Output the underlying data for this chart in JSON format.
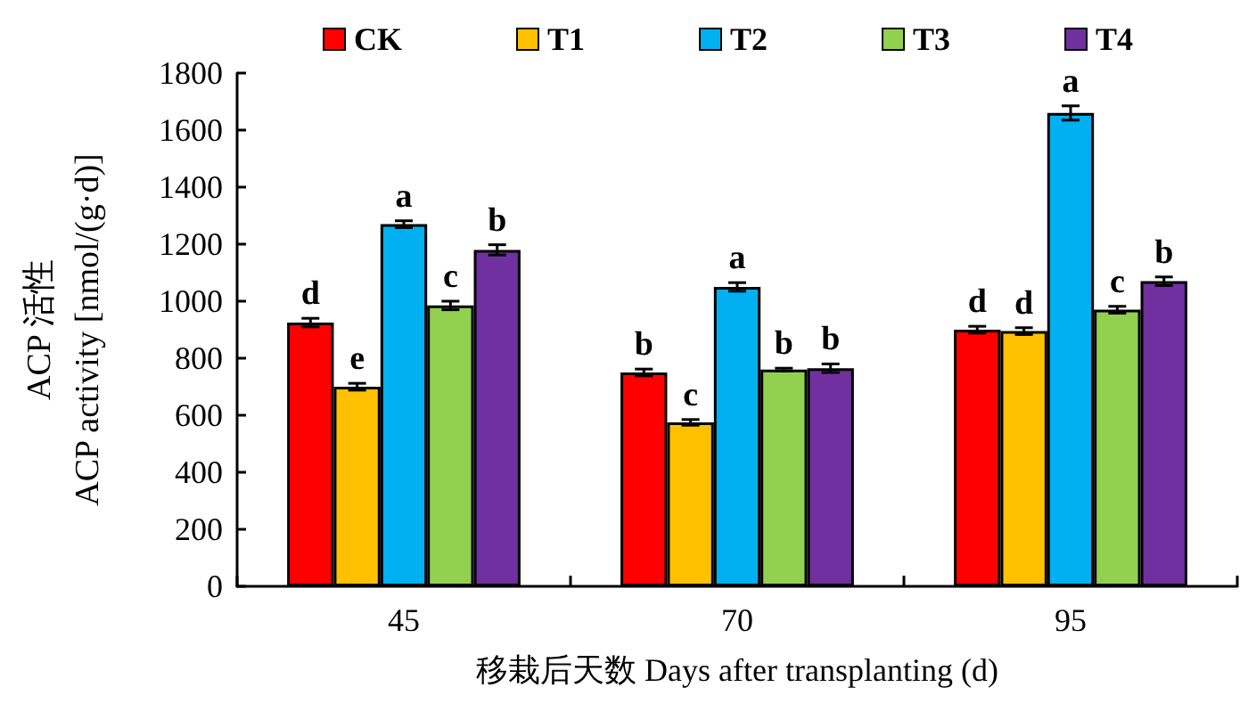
{
  "chart_data": {
    "type": "bar",
    "xlabel": "移栽后天数 Days after transplanting (d)",
    "ylabel": "ACP 活性\nACP activity [nmol/(g·d)]",
    "categories": [
      "45",
      "70",
      "95"
    ],
    "series": [
      {
        "name": "CK",
        "color": "#ff0000",
        "values": [
          925,
          750,
          900
        ],
        "errors": [
          15,
          12,
          12
        ],
        "value_labels": [
          "d",
          "b",
          "d"
        ]
      },
      {
        "name": "T1",
        "color": "#ffc000",
        "values": [
          700,
          575,
          895
        ],
        "errors": [
          12,
          10,
          12
        ],
        "value_labels": [
          "e",
          "c",
          "d"
        ]
      },
      {
        "name": "T2",
        "color": "#00b0f0",
        "values": [
          1270,
          1050,
          1660
        ],
        "errors": [
          12,
          15,
          25
        ],
        "value_labels": [
          "a",
          "a",
          "a"
        ]
      },
      {
        "name": "T3",
        "color": "#92d050",
        "values": [
          985,
          760,
          970
        ],
        "errors": [
          15,
          5,
          12
        ],
        "value_labels": [
          "c",
          "b",
          "c"
        ]
      },
      {
        "name": "T4",
        "color": "#7030a0",
        "values": [
          1180,
          765,
          1070
        ],
        "errors": [
          18,
          15,
          15
        ],
        "value_labels": [
          "b",
          "b",
          "b"
        ]
      }
    ],
    "ylim": [
      0,
      1800
    ],
    "yticks": [
      0,
      200,
      400,
      600,
      800,
      1000,
      1200,
      1400,
      1600,
      1800
    ],
    "legend": "top"
  }
}
